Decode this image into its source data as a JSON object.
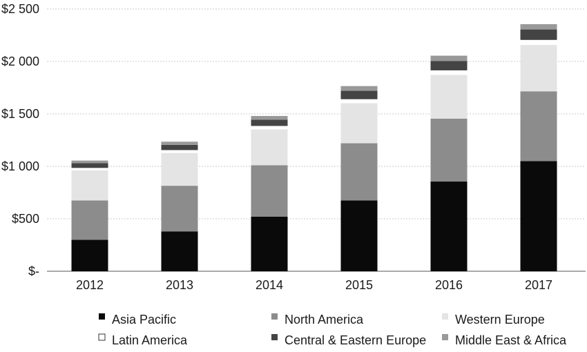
{
  "chart_data": {
    "type": "bar",
    "stacked": true,
    "title": "",
    "xlabel": "",
    "ylabel": "",
    "categories": [
      "2012",
      "2013",
      "2014",
      "2015",
      "2016",
      "2017"
    ],
    "ylim": [
      0,
      2500
    ],
    "y_ticks": [
      {
        "value": 0,
        "label": "$-"
      },
      {
        "value": 500,
        "label": "$500"
      },
      {
        "value": 1000,
        "label": "$1 000"
      },
      {
        "value": 1500,
        "label": "$1 500"
      },
      {
        "value": 2000,
        "label": "$2 000"
      },
      {
        "value": 2500,
        "label": "$2 500"
      }
    ],
    "grid": true,
    "legend_position": "bottom",
    "series": [
      {
        "name": "Asia Pacific",
        "color": "#0a0a0a",
        "values": [
          300,
          380,
          520,
          675,
          855,
          1050
        ]
      },
      {
        "name": "North America",
        "color": "#8c8c8c",
        "values": [
          375,
          435,
          490,
          545,
          600,
          665
        ]
      },
      {
        "name": "Western Europe",
        "color": "#e4e4e4",
        "values": [
          290,
          315,
          345,
          385,
          420,
          445
        ]
      },
      {
        "name": "Latin America",
        "color": "#ffffff",
        "values": [
          20,
          25,
          30,
          35,
          40,
          45
        ]
      },
      {
        "name": "Central & Eastern Europe",
        "color": "#444444",
        "values": [
          45,
          50,
          60,
          80,
          90,
          100
        ]
      },
      {
        "name": "Middle East & Africa",
        "color": "#999999",
        "values": [
          25,
          30,
          35,
          45,
          50,
          50
        ]
      }
    ]
  }
}
